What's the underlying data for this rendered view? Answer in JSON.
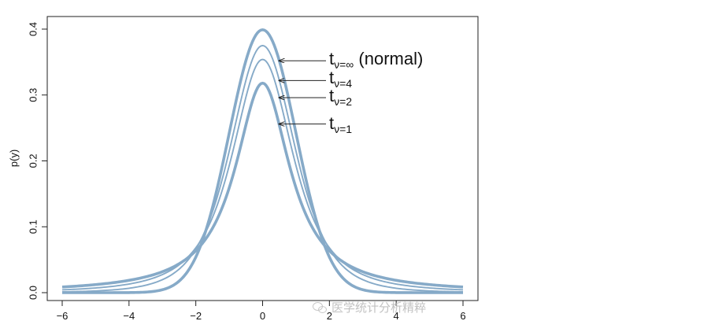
{
  "chart_data": {
    "type": "line",
    "title": "",
    "xlabel": "",
    "ylabel": "p(y)",
    "xlim": [
      -6.3,
      6.6
    ],
    "ylim": [
      -0.01,
      0.415
    ],
    "x_ticks": [
      -6,
      -4,
      -2,
      0,
      2,
      4,
      6
    ],
    "y_ticks": [
      0.0,
      0.1,
      0.2,
      0.3,
      0.4
    ],
    "y_tick_labels": [
      "0.0",
      "0.1",
      "0.2",
      "0.3",
      "0.4"
    ],
    "x_tick_labels": [
      "−6",
      "−4",
      "−2",
      "0",
      "2",
      "4",
      "6"
    ],
    "grid": false,
    "line_color": "#86aac8",
    "series": [
      {
        "nu": "∞",
        "peak": 0.399,
        "line_width": "thick",
        "x": [
          -6,
          -4,
          -3,
          -2,
          -1.5,
          -1,
          -0.5,
          0,
          0.5,
          1,
          1.5,
          2,
          3,
          4,
          6
        ],
        "y": [
          0.0,
          0.0001,
          0.0044,
          0.054,
          0.1295,
          0.242,
          0.352,
          0.399,
          0.352,
          0.242,
          0.1295,
          0.054,
          0.0044,
          0.0001,
          0.0
        ]
      },
      {
        "nu": "4",
        "peak": 0.375,
        "line_width": "thin",
        "x": [
          -6,
          -4,
          -3,
          -2,
          -1.5,
          -1,
          -0.5,
          0,
          0.5,
          1,
          1.5,
          2,
          3,
          4,
          6
        ],
        "y": [
          0.0021,
          0.0067,
          0.0197,
          0.0663,
          0.122,
          0.2147,
          0.3232,
          0.375,
          0.3232,
          0.2147,
          0.122,
          0.0663,
          0.0197,
          0.0067,
          0.0021
        ]
      },
      {
        "nu": "2",
        "peak": 0.354,
        "line_width": "thin",
        "x": [
          -6,
          -4,
          -3,
          -2,
          -1.5,
          -1,
          -0.5,
          0,
          0.5,
          1,
          1.5,
          2,
          3,
          4,
          6
        ],
        "y": [
          0.0042,
          0.0131,
          0.0274,
          0.068,
          0.113,
          0.1925,
          0.2963,
          0.354,
          0.2963,
          0.1925,
          0.113,
          0.068,
          0.0274,
          0.0131,
          0.0042
        ]
      },
      {
        "nu": "1",
        "peak": 0.318,
        "line_width": "thick",
        "x": [
          -6,
          -4,
          -3,
          -2,
          -1.5,
          -1,
          -0.5,
          0,
          0.5,
          1,
          1.5,
          2,
          3,
          4,
          6
        ],
        "y": [
          0.0086,
          0.0187,
          0.0318,
          0.0637,
          0.0979,
          0.1592,
          0.2546,
          0.318,
          0.2546,
          0.1592,
          0.0979,
          0.0637,
          0.0318,
          0.0187,
          0.0086
        ]
      }
    ],
    "annotations": [
      {
        "main": "t",
        "sub": "ν=∞",
        "extra": " (normal)",
        "point_x": 0.45,
        "point_y": 0.352
      },
      {
        "main": "t",
        "sub": "ν=4",
        "extra": "",
        "point_x": 0.45,
        "point_y": 0.322
      },
      {
        "main": "t",
        "sub": "ν=2",
        "extra": "",
        "point_x": 0.45,
        "point_y": 0.296
      },
      {
        "main": "t",
        "sub": "ν=1",
        "extra": "",
        "point_x": 0.45,
        "point_y": 0.256
      }
    ]
  },
  "watermark": {
    "text": "医学统计分析精粹",
    "icon": "wechat-icon"
  }
}
